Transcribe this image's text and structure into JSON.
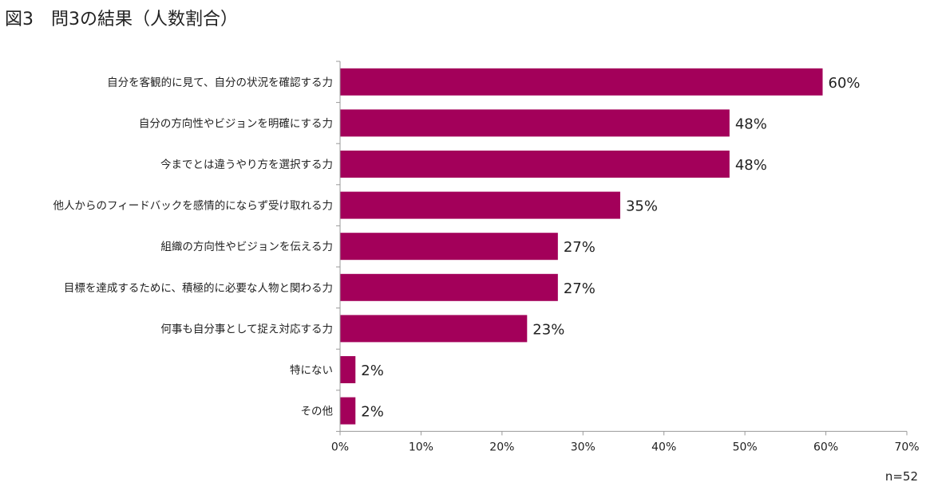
{
  "chart_data": {
    "type": "bar",
    "orientation": "horizontal",
    "title": "図3　問3の結果（人数割合）",
    "categories": [
      "自分を客観的に見て、自分の状況を確認する力",
      "自分の方向性やビジョンを明確にする力",
      "今までとは違うやり方を選択する力",
      "他人からのフィードバックを感情的にならず受け取れる力",
      "組織の方向性やビジョンを伝える力",
      "目標を達成するために、積極的に必要な人物と関わる力",
      "何事も自分事として捉え対応する力",
      "特にない",
      "その他"
    ],
    "values": [
      59.6,
      48.1,
      48.1,
      34.6,
      26.9,
      26.9,
      23.1,
      1.9,
      1.9
    ],
    "data_labels": [
      "60%",
      "48%",
      "48%",
      "35%",
      "27%",
      "27%",
      "23%",
      "2%",
      "2%"
    ],
    "xlim": [
      0,
      70
    ],
    "xticks": [
      "0%",
      "10%",
      "20%",
      "30%",
      "40%",
      "50%",
      "60%",
      "70%"
    ],
    "xlabel": "",
    "ylabel": "",
    "grid": false,
    "bar_color": "#A3005A",
    "note": "n=52"
  }
}
